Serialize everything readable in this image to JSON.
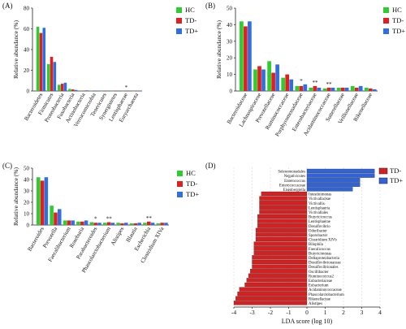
{
  "colors": {
    "HC": "#2ecc2e",
    "TD-": "#e02020",
    "TD+": "#2f6fe0",
    "lda_td_minus": "#d42020",
    "lda_td_plus": "#2f63d6"
  },
  "chart_data": [
    {
      "panel": "(A)",
      "type": "bar",
      "ylabel": "Relative abundance (%)",
      "ylim": [
        0,
        80
      ],
      "ticks": [
        0,
        20,
        40,
        60,
        80
      ],
      "legend": [
        "HC",
        "TD-",
        "TD+"
      ],
      "categories": [
        "Bacteroidetes",
        "Firmicutes",
        "Proteobacteria",
        "Fusobacteria",
        "Actinobacteria",
        "Verrucomicrobia",
        "Tenericutes",
        "Synergistetes",
        "Lentisphaerae",
        "Euryarchaeota"
      ],
      "series": [
        {
          "name": "HC",
          "values": [
            62,
            26,
            6,
            2,
            0.5,
            0.2,
            0.1,
            0.1,
            0.1,
            0.05
          ]
        },
        {
          "name": "TD-",
          "values": [
            56,
            33,
            7,
            1.5,
            0.4,
            0.3,
            0.1,
            0.1,
            0.05,
            0.05
          ]
        },
        {
          "name": "TD+",
          "values": [
            61,
            28,
            8,
            1,
            0.6,
            0.2,
            0.1,
            0.1,
            0.1,
            0.05
          ]
        }
      ],
      "annotations": [
        {
          "category": "Lentisphaerae",
          "text": "*"
        }
      ]
    },
    {
      "panel": "(B)",
      "type": "bar",
      "ylabel": "Relative abundance (%)",
      "ylim": [
        0,
        50
      ],
      "ticks": [
        0,
        10,
        20,
        30,
        40,
        50
      ],
      "legend": [
        "HC",
        "TD-",
        "TD+"
      ],
      "categories": [
        "Bacteroidaceae",
        "Lachnospiraceae",
        "Prevotellaceae",
        "Ruminococcaceae",
        "Porphyromonadaceae",
        "Enterobacteriaceae",
        "Acidaminococcaceae",
        "Sutterellaceae",
        "Veillonellaceae",
        "Rikenellaceae"
      ],
      "series": [
        {
          "name": "HC",
          "values": [
            42,
            13,
            18,
            8,
            3,
            2,
            1.5,
            2,
            3,
            2
          ]
        },
        {
          "name": "TD-",
          "values": [
            39,
            15,
            11,
            10,
            3,
            3,
            2,
            2,
            2,
            1.5
          ]
        },
        {
          "name": "TD+",
          "values": [
            42,
            13,
            16,
            7,
            4,
            2,
            2,
            2,
            3,
            1
          ]
        }
      ],
      "annotations": [
        {
          "category": "Porphyromonadaceae",
          "text": "*"
        },
        {
          "category": "Enterobacteriaceae",
          "text": "**"
        },
        {
          "category": "Acidaminococcaceae",
          "text": "**"
        }
      ]
    },
    {
      "panel": "(C)",
      "type": "bar",
      "ylabel": "Relative abundance (%)",
      "ylim": [
        0,
        50
      ],
      "ticks": [
        0,
        10,
        20,
        30,
        40,
        50
      ],
      "legend": [
        "HC",
        "TD-",
        "TD+"
      ],
      "categories": [
        "Bacteroides",
        "Prevotella",
        "Faecalibacterium",
        "Roseburia",
        "Parabacteroides",
        "Phascolarctobacterium",
        "Alistipes",
        "Blautia",
        "Escherichia",
        "Clostridium XIVa"
      ],
      "series": [
        {
          "name": "HC",
          "values": [
            42,
            17,
            4,
            3,
            2.5,
            2,
            2,
            1.5,
            2,
            1.5
          ]
        },
        {
          "name": "TD-",
          "values": [
            39,
            11,
            4,
            3,
            2,
            2.5,
            1.5,
            1.5,
            3,
            2
          ]
        },
        {
          "name": "TD+",
          "values": [
            42,
            14,
            4,
            4,
            2,
            2,
            2,
            2,
            2,
            2
          ]
        }
      ],
      "annotations": [
        {
          "category": "Parabacteroides",
          "text": "*"
        },
        {
          "category": "Phascolarctobacterium",
          "text": "**"
        },
        {
          "category": "Escherichia",
          "text": "**"
        }
      ]
    },
    {
      "panel": "(D)",
      "type": "bar",
      "orientation": "horizontal",
      "xlabel": "LDA score (log 10)",
      "xlim": [
        -4,
        4
      ],
      "ticks": [
        -4,
        -3,
        -2,
        -1,
        0,
        1,
        2,
        3,
        4
      ],
      "legend": [
        "TD-",
        "TD+"
      ],
      "items": [
        {
          "label": "Selenomonadales",
          "value": 3.7,
          "group": "TD+"
        },
        {
          "label": "Negativicutes",
          "value": 3.7,
          "group": "TD+"
        },
        {
          "label": "Enterococcus",
          "value": 2.9,
          "group": "TD+"
        },
        {
          "label": "Enterococcaceae",
          "value": 2.9,
          "group": "TD+"
        },
        {
          "label": "Eisenbergiella",
          "value": 2.5,
          "group": "TD+"
        },
        {
          "label": "Intestinimonas",
          "value": -2.5,
          "group": "TD-"
        },
        {
          "label": "Victivallaceae",
          "value": -2.6,
          "group": "TD-"
        },
        {
          "label": "Victivallis",
          "value": -2.6,
          "group": "TD-"
        },
        {
          "label": "Lentisphaeria",
          "value": -2.6,
          "group": "TD-"
        },
        {
          "label": "Victivallales",
          "value": -2.6,
          "group": "TD-"
        },
        {
          "label": "Butyricicoccus",
          "value": -2.7,
          "group": "TD-"
        },
        {
          "label": "Lentisphaerae",
          "value": -2.7,
          "group": "TD-"
        },
        {
          "label": "Desulfovibrio",
          "value": -2.7,
          "group": "TD-"
        },
        {
          "label": "Odoribacter",
          "value": -2.8,
          "group": "TD-"
        },
        {
          "label": "Sporobacter",
          "value": -2.8,
          "group": "TD-"
        },
        {
          "label": "Clostridium XlVb",
          "value": -2.8,
          "group": "TD-"
        },
        {
          "label": "Bilophila",
          "value": -2.9,
          "group": "TD-"
        },
        {
          "label": "Faecalicoccus",
          "value": -2.9,
          "group": "TD-"
        },
        {
          "label": "Butyricimonas",
          "value": -2.9,
          "group": "TD-"
        },
        {
          "label": "Deltaproteobacteria",
          "value": -3.0,
          "group": "TD-"
        },
        {
          "label": "Desulfovibrionaceae",
          "value": -3.0,
          "group": "TD-"
        },
        {
          "label": "Desulfovibrionales",
          "value": -3.0,
          "group": "TD-"
        },
        {
          "label": "Oscillibacter",
          "value": -3.1,
          "group": "TD-"
        },
        {
          "label": "Ruminococcus2",
          "value": -3.2,
          "group": "TD-"
        },
        {
          "label": "Eubacteriaceae",
          "value": -3.3,
          "group": "TD-"
        },
        {
          "label": "Eubacterium",
          "value": -3.4,
          "group": "TD-"
        },
        {
          "label": "Acidaminococcaceae",
          "value": -3.7,
          "group": "TD-"
        },
        {
          "label": "Phascolarctobacterium",
          "value": -3.8,
          "group": "TD-"
        },
        {
          "label": "Rikenellaceae",
          "value": -3.9,
          "group": "TD-"
        },
        {
          "label": "Alistipes",
          "value": -4.0,
          "group": "TD-"
        }
      ]
    }
  ]
}
